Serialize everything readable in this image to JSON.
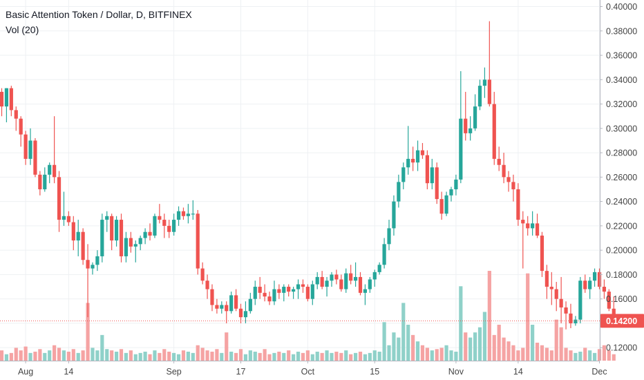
{
  "chart_data": {
    "type": "candlestick",
    "title": "Basic Attention Token / Dollar, D, BITFINEX",
    "volume_label": "Vol (20)",
    "last_price_label": "0.14200",
    "last_price": 0.142,
    "ylim": [
      0.115,
      0.402
    ],
    "y_ticks": [
      "0.40000",
      "0.38000",
      "0.36000",
      "0.34000",
      "0.32000",
      "0.30000",
      "0.28000",
      "0.26000",
      "0.24000",
      "0.22000",
      "0.20000",
      "0.18000",
      "0.16000",
      "0.14000",
      "0.12000"
    ],
    "x_tick_labels": [
      {
        "label": "Aug",
        "day": 5
      },
      {
        "label": "14",
        "day": 14
      },
      {
        "label": "Sep",
        "day": 36
      },
      {
        "label": "17",
        "day": 50
      },
      {
        "label": "Oct",
        "day": 64
      },
      {
        "label": "15",
        "day": 78
      },
      {
        "label": "Nov",
        "day": 95
      },
      {
        "label": "14",
        "day": 108
      },
      {
        "label": "Dec",
        "day": 125
      }
    ],
    "colors": {
      "up": "#26a69a",
      "down": "#ef5350",
      "up_vol": "#8fd1c9",
      "down_vol": "#f5a3a3",
      "grid": "#eef0f3",
      "axis_text": "#444444",
      "price_tag": "#ef5350"
    },
    "candles": [
      [
        0.33,
        0.333,
        0.31,
        0.318
      ],
      [
        0.318,
        0.333,
        0.305,
        0.333
      ],
      [
        0.333,
        0.335,
        0.31,
        0.315
      ],
      [
        0.315,
        0.318,
        0.298,
        0.308
      ],
      [
        0.308,
        0.31,
        0.285,
        0.295
      ],
      [
        0.295,
        0.298,
        0.27,
        0.275
      ],
      [
        0.275,
        0.3,
        0.27,
        0.29
      ],
      [
        0.29,
        0.292,
        0.26,
        0.262
      ],
      [
        0.262,
        0.265,
        0.245,
        0.25
      ],
      [
        0.25,
        0.268,
        0.248,
        0.262
      ],
      [
        0.262,
        0.272,
        0.255,
        0.27
      ],
      [
        0.27,
        0.31,
        0.255,
        0.26
      ],
      [
        0.26,
        0.265,
        0.215,
        0.225
      ],
      [
        0.225,
        0.248,
        0.22,
        0.228
      ],
      [
        0.228,
        0.232,
        0.22,
        0.223
      ],
      [
        0.223,
        0.228,
        0.2,
        0.208
      ],
      [
        0.208,
        0.225,
        0.195,
        0.215
      ],
      [
        0.215,
        0.218,
        0.188,
        0.192
      ],
      [
        0.192,
        0.205,
        0.145,
        0.185
      ],
      [
        0.185,
        0.19,
        0.18,
        0.188
      ],
      [
        0.188,
        0.2,
        0.183,
        0.195
      ],
      [
        0.195,
        0.23,
        0.19,
        0.225
      ],
      [
        0.225,
        0.232,
        0.215,
        0.228
      ],
      [
        0.228,
        0.23,
        0.2,
        0.208
      ],
      [
        0.208,
        0.228,
        0.203,
        0.225
      ],
      [
        0.225,
        0.23,
        0.19,
        0.195
      ],
      [
        0.195,
        0.215,
        0.19,
        0.21
      ],
      [
        0.21,
        0.215,
        0.198,
        0.203
      ],
      [
        0.203,
        0.208,
        0.19,
        0.205
      ],
      [
        0.205,
        0.212,
        0.2,
        0.21
      ],
      [
        0.21,
        0.218,
        0.205,
        0.215
      ],
      [
        0.215,
        0.222,
        0.208,
        0.212
      ],
      [
        0.212,
        0.23,
        0.21,
        0.228
      ],
      [
        0.228,
        0.238,
        0.222,
        0.225
      ],
      [
        0.225,
        0.23,
        0.21,
        0.22
      ],
      [
        0.22,
        0.225,
        0.21,
        0.215
      ],
      [
        0.215,
        0.23,
        0.212,
        0.225
      ],
      [
        0.225,
        0.236,
        0.22,
        0.232
      ],
      [
        0.232,
        0.235,
        0.225,
        0.228
      ],
      [
        0.228,
        0.238,
        0.222,
        0.23
      ],
      [
        0.23,
        0.241,
        0.225,
        0.23
      ],
      [
        0.23,
        0.233,
        0.18,
        0.185
      ],
      [
        0.185,
        0.19,
        0.172,
        0.175
      ],
      [
        0.175,
        0.18,
        0.16,
        0.168
      ],
      [
        0.168,
        0.172,
        0.15,
        0.155
      ],
      [
        0.155,
        0.16,
        0.148,
        0.152
      ],
      [
        0.152,
        0.158,
        0.148,
        0.155
      ],
      [
        0.155,
        0.158,
        0.14,
        0.15
      ],
      [
        0.15,
        0.166,
        0.148,
        0.163
      ],
      [
        0.163,
        0.168,
        0.15,
        0.152
      ],
      [
        0.152,
        0.156,
        0.14,
        0.145
      ],
      [
        0.145,
        0.158,
        0.14,
        0.15
      ],
      [
        0.15,
        0.165,
        0.148,
        0.16
      ],
      [
        0.16,
        0.175,
        0.155,
        0.17
      ],
      [
        0.17,
        0.178,
        0.16,
        0.165
      ],
      [
        0.165,
        0.172,
        0.158,
        0.162
      ],
      [
        0.162,
        0.166,
        0.155,
        0.158
      ],
      [
        0.158,
        0.175,
        0.155,
        0.168
      ],
      [
        0.168,
        0.172,
        0.16,
        0.165
      ],
      [
        0.165,
        0.172,
        0.158,
        0.17
      ],
      [
        0.17,
        0.172,
        0.162,
        0.166
      ],
      [
        0.166,
        0.17,
        0.16,
        0.168
      ],
      [
        0.168,
        0.176,
        0.16,
        0.172
      ],
      [
        0.172,
        0.176,
        0.165,
        0.17
      ],
      [
        0.17,
        0.172,
        0.158,
        0.16
      ],
      [
        0.16,
        0.175,
        0.155,
        0.172
      ],
      [
        0.172,
        0.182,
        0.168,
        0.178
      ],
      [
        0.178,
        0.183,
        0.168,
        0.17
      ],
      [
        0.17,
        0.178,
        0.162,
        0.175
      ],
      [
        0.175,
        0.182,
        0.17,
        0.18
      ],
      [
        0.18,
        0.184,
        0.172,
        0.176
      ],
      [
        0.176,
        0.18,
        0.166,
        0.168
      ],
      [
        0.168,
        0.185,
        0.165,
        0.181
      ],
      [
        0.181,
        0.188,
        0.172,
        0.175
      ],
      [
        0.175,
        0.19,
        0.17,
        0.178
      ],
      [
        0.178,
        0.182,
        0.163,
        0.165
      ],
      [
        0.165,
        0.172,
        0.155,
        0.168
      ],
      [
        0.168,
        0.178,
        0.165,
        0.176
      ],
      [
        0.176,
        0.184,
        0.17,
        0.182
      ],
      [
        0.182,
        0.19,
        0.18,
        0.188
      ],
      [
        0.188,
        0.21,
        0.185,
        0.205
      ],
      [
        0.205,
        0.225,
        0.2,
        0.218
      ],
      [
        0.218,
        0.245,
        0.212,
        0.24
      ],
      [
        0.24,
        0.262,
        0.235,
        0.256
      ],
      [
        0.256,
        0.272,
        0.25,
        0.268
      ],
      [
        0.268,
        0.302,
        0.262,
        0.275
      ],
      [
        0.275,
        0.285,
        0.265,
        0.272
      ],
      [
        0.272,
        0.29,
        0.265,
        0.282
      ],
      [
        0.282,
        0.288,
        0.275,
        0.278
      ],
      [
        0.278,
        0.282,
        0.25,
        0.255
      ],
      [
        0.255,
        0.275,
        0.25,
        0.268
      ],
      [
        0.268,
        0.272,
        0.238,
        0.242
      ],
      [
        0.242,
        0.248,
        0.225,
        0.23
      ],
      [
        0.23,
        0.248,
        0.228,
        0.245
      ],
      [
        0.245,
        0.252,
        0.24,
        0.25
      ],
      [
        0.25,
        0.262,
        0.245,
        0.258
      ],
      [
        0.258,
        0.347,
        0.255,
        0.308
      ],
      [
        0.308,
        0.33,
        0.29,
        0.296
      ],
      [
        0.296,
        0.31,
        0.29,
        0.3
      ],
      [
        0.3,
        0.328,
        0.298,
        0.318
      ],
      [
        0.318,
        0.34,
        0.315,
        0.335
      ],
      [
        0.335,
        0.35,
        0.325,
        0.34
      ],
      [
        0.34,
        0.388,
        0.318,
        0.32
      ],
      [
        0.32,
        0.33,
        0.27,
        0.275
      ],
      [
        0.275,
        0.285,
        0.265,
        0.27
      ],
      [
        0.27,
        0.28,
        0.255,
        0.26
      ],
      [
        0.26,
        0.265,
        0.248,
        0.256
      ],
      [
        0.256,
        0.262,
        0.24,
        0.25
      ],
      [
        0.25,
        0.255,
        0.22,
        0.225
      ],
      [
        0.225,
        0.232,
        0.185,
        0.222
      ],
      [
        0.222,
        0.228,
        0.212,
        0.218
      ],
      [
        0.218,
        0.232,
        0.212,
        0.222
      ],
      [
        0.222,
        0.23,
        0.21,
        0.212
      ],
      [
        0.212,
        0.215,
        0.178,
        0.183
      ],
      [
        0.183,
        0.188,
        0.16,
        0.17
      ],
      [
        0.17,
        0.182,
        0.155,
        0.168
      ],
      [
        0.168,
        0.174,
        0.15,
        0.16
      ],
      [
        0.16,
        0.178,
        0.14,
        0.153
      ],
      [
        0.153,
        0.158,
        0.135,
        0.148
      ],
      [
        0.148,
        0.156,
        0.136,
        0.14
      ],
      [
        0.14,
        0.146,
        0.138,
        0.143
      ],
      [
        0.143,
        0.178,
        0.14,
        0.175
      ],
      [
        0.175,
        0.18,
        0.165,
        0.168
      ],
      [
        0.168,
        0.178,
        0.16,
        0.175
      ],
      [
        0.175,
        0.185,
        0.17,
        0.182
      ],
      [
        0.182,
        0.185,
        0.168,
        0.17
      ],
      [
        0.17,
        0.176,
        0.16,
        0.166
      ],
      [
        0.166,
        0.168,
        0.15,
        0.152
      ],
      [
        0.152,
        0.162,
        0.142,
        0.142
      ]
    ],
    "volume": [
      8,
      5,
      6,
      10,
      8,
      11,
      6,
      7,
      9,
      6,
      8,
      12,
      10,
      8,
      7,
      9,
      6,
      8,
      45,
      10,
      8,
      20,
      9,
      8,
      7,
      9,
      6,
      8,
      5,
      6,
      7,
      5,
      8,
      6,
      9,
      7,
      6,
      5,
      8,
      7,
      6,
      12,
      10,
      8,
      7,
      9,
      6,
      22,
      7,
      6,
      9,
      5,
      8,
      7,
      6,
      9,
      5,
      6,
      7,
      6,
      8,
      5,
      7,
      6,
      8,
      5,
      7,
      6,
      8,
      6,
      7,
      6,
      8,
      5,
      6,
      7,
      5,
      6,
      8,
      7,
      30,
      12,
      22,
      18,
      45,
      28,
      20,
      15,
      12,
      10,
      8,
      9,
      10,
      12,
      8,
      7,
      58,
      22,
      18,
      22,
      26,
      38,
      70,
      20,
      28,
      18,
      15,
      12,
      8,
      10,
      68,
      28,
      14,
      12,
      10,
      8,
      32,
      26,
      10,
      8,
      6,
      7,
      10,
      8,
      6,
      9,
      12,
      8,
      5
    ]
  }
}
